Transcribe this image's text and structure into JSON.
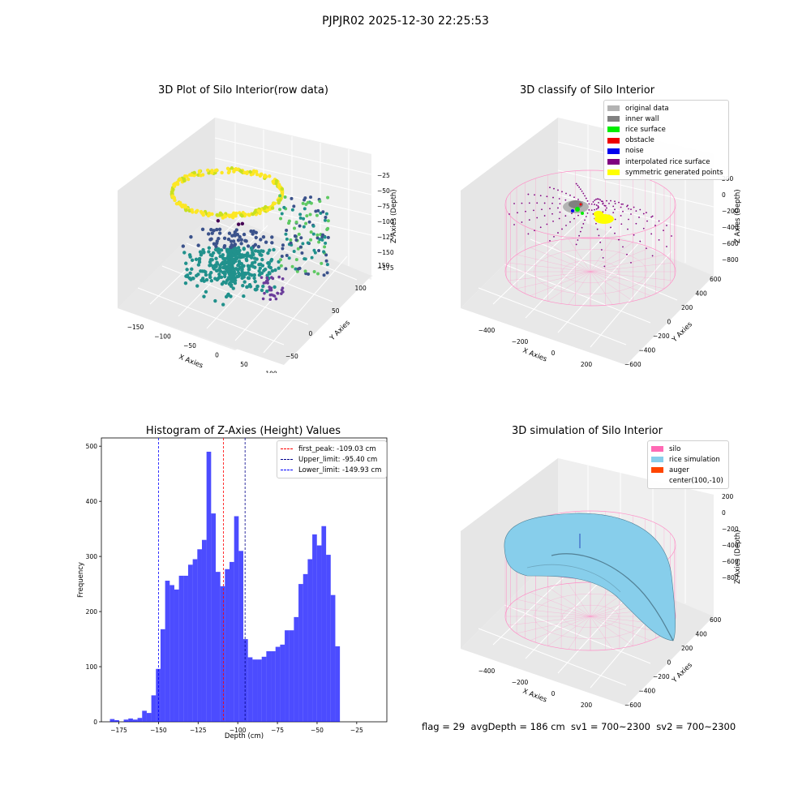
{
  "page_title": "PJPJR02 2025-12-30 22:25:53",
  "footer": "flag = 29  avgDepth = 186 cm  sv1 = 700~2300  sv2 = 700~2300",
  "panels": {
    "raw": {
      "title": "3D Plot of Silo Interior(row data)",
      "xlabel": "X Axies",
      "ylabel": "Y Axies",
      "zlabel": "Z Axies (Depth)",
      "xticks": [
        "−150",
        "−100",
        "−50",
        "0",
        "50",
        "100"
      ],
      "yticks": [
        "−50",
        "0",
        "50",
        "100",
        "150"
      ],
      "zticks": [
        "−25",
        "−50",
        "−75",
        "−100",
        "−125",
        "−150",
        "−175"
      ]
    },
    "classify": {
      "title": "3D classify of Silo Interior",
      "xlabel": "X Axies",
      "ylabel": "Y Axies",
      "zlabel": "Z Axies (Depth)",
      "xticks": [
        "−400",
        "−200",
        "0",
        "200",
        "400",
        "600"
      ],
      "yticks": [
        "−600",
        "−400",
        "−200",
        "0",
        "200",
        "400",
        "600"
      ],
      "zticks": [
        "200",
        "0",
        "−200",
        "−400",
        "−600",
        "−800"
      ],
      "legend": [
        {
          "label": "original data",
          "color": "#b3b3b3"
        },
        {
          "label": "inner wall",
          "color": "#808080"
        },
        {
          "label": "rice surface",
          "color": "#00ee00"
        },
        {
          "label": "obstacle",
          "color": "#ee0000"
        },
        {
          "label": "noise",
          "color": "#0000ee"
        },
        {
          "label": "interpolated rice surface",
          "color": "#800080"
        },
        {
          "label": "symmetric generated points",
          "color": "#ffff00"
        }
      ]
    },
    "simulation": {
      "title": "3D simulation of Silo Interior",
      "xlabel": "X Axies",
      "ylabel": "Y Axies",
      "zlabel": "Z Axies (Depth)",
      "xticks": [
        "−400",
        "−200",
        "0",
        "200",
        "400",
        "600"
      ],
      "yticks": [
        "−600",
        "−400",
        "−200",
        "0",
        "200",
        "400",
        "600"
      ],
      "zticks": [
        "200",
        "0",
        "−200",
        "−400",
        "−600",
        "−800"
      ],
      "legend": [
        {
          "label": "silo",
          "color": "#ff69b4"
        },
        {
          "label": "rice simulation",
          "color": "#87ceeb"
        },
        {
          "label": "auger",
          "color": "#ff4500"
        },
        {
          "label": "center(100,-10)",
          "color": ""
        }
      ]
    }
  },
  "chart_data": {
    "type": "bar",
    "title": "Histogram of Z-Axies (Height) Values",
    "xlabel": "Depth (cm)",
    "ylabel": "Frequency",
    "xlim": [
      -186,
      -6
    ],
    "ylim": [
      0,
      515
    ],
    "xticks": [
      -175,
      -150,
      -125,
      -100,
      -75,
      -50,
      -25
    ],
    "yticks": [
      0,
      100,
      200,
      300,
      400,
      500
    ],
    "bin_width": 2.9,
    "bin_start": -180.6,
    "values": [
      5,
      3,
      0,
      4,
      6,
      4,
      7,
      20,
      16,
      48,
      96,
      168,
      256,
      248,
      240,
      265,
      265,
      285,
      295,
      313,
      330,
      490,
      378,
      272,
      246,
      277,
      290,
      373,
      310,
      150,
      117,
      113,
      113,
      118,
      128,
      128,
      136,
      140,
      166,
      166,
      190,
      250,
      268,
      295,
      340,
      320,
      355,
      303,
      230,
      137
    ],
    "color": "#0000ff",
    "lines": [
      {
        "label": "first_peak: -109.03 cm",
        "value": -109.03,
        "color": "#ff0000"
      },
      {
        "label": "Upper_limit: -95.40 cm",
        "value": -95.4,
        "color": "#00008b"
      },
      {
        "label": "Lower_limit: -149.93 cm",
        "value": -149.93,
        "color": "#0000ff"
      }
    ]
  }
}
